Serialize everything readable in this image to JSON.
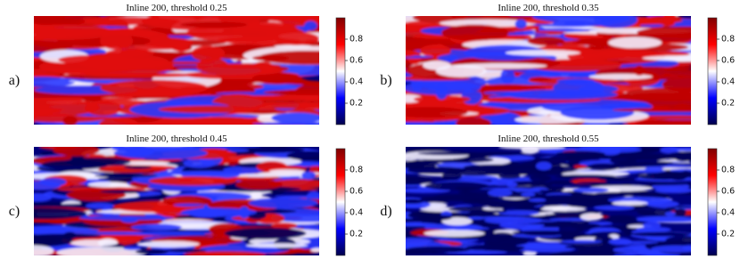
{
  "chart_data": [
    {
      "type": "heatmap",
      "title": "Inline 200, threshold 0.25",
      "panel_label": "a)",
      "clim": [
        0,
        1
      ],
      "cticks": [
        0.2,
        0.4,
        0.6,
        0.8
      ]
    },
    {
      "type": "heatmap",
      "title": "Inline 200, threshold 0.35",
      "panel_label": "b)",
      "clim": [
        0,
        1
      ],
      "cticks": [
        0.2,
        0.4,
        0.6,
        0.8
      ]
    },
    {
      "type": "heatmap",
      "title": "Inline 200, threshold 0.45",
      "panel_label": "c)",
      "clim": [
        0,
        1
      ],
      "cticks": [
        0.2,
        0.4,
        0.6,
        0.8
      ]
    },
    {
      "type": "heatmap",
      "title": "Inline 200, threshold 0.55",
      "panel_label": "d)",
      "clim": [
        0,
        1
      ],
      "cticks": [
        0.2,
        0.4,
        0.6,
        0.8
      ]
    }
  ]
}
